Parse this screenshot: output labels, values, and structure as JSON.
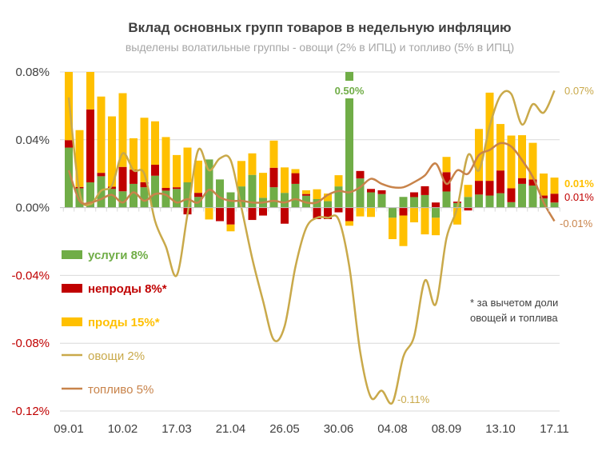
{
  "chart_data": {
    "type": "bar",
    "title": "Вклад основных групп товаров в недельную инфляцию",
    "subtitle": "выделены волатильные группы - овощи (2% в ИПЦ) и топливо (5% в ИПЦ)",
    "ylim": [
      -0.12,
      0.08
    ],
    "yticks": [
      "0.08%",
      "0.04%",
      "0.00%",
      "-0.04%",
      "-0.08%",
      "-0.12%"
    ],
    "ytick_values": [
      0.08,
      0.04,
      0,
      -0.04,
      -0.08,
      -0.12
    ],
    "xtick_labels": [
      "09.01",
      "10.02",
      "17.03",
      "21.04",
      "26.05",
      "30.06",
      "04.08",
      "08.09",
      "13.10",
      "17.11"
    ],
    "xtick_every": 5,
    "grid": true,
    "legend_placement": "left",
    "footnote": [
      "* за вычетом доли",
      "овощей и топлива"
    ],
    "annotations": {
      "spike": "0.50%",
      "veg_min": "-0.11%",
      "veg_last": "0.07%",
      "prody_last": "0.01%",
      "neprody_last": "0.01%",
      "fuel_last": "-0.01%"
    },
    "stacked_series": [
      {
        "name": "услуги 8%",
        "color": "#70AD47",
        "values": [
          0.0354,
          0.0114,
          0.0149,
          0.0185,
          0.011,
          0.0096,
          0.014,
          0.012,
          0.0188,
          0.01,
          0.011,
          0.0149,
          0.0063,
          0.0284,
          0.0166,
          0.009,
          0.0125,
          0.0193,
          0.0058,
          0.012,
          0.0087,
          0.014,
          0.007,
          0.005,
          0.0038,
          0.0125,
          0.5,
          0.0172,
          0.009,
          0.008,
          -0.006,
          0.0063,
          0.0062,
          0.0074,
          -0.006,
          0.0095,
          0.0027,
          0.0063,
          0.0077,
          0.0071,
          0.0085,
          0.0032,
          0.014,
          0.013,
          0.0054,
          0.003
        ]
      },
      {
        "name": "непроды 8%*",
        "color": "#C00000",
        "values": [
          0.0044,
          0.0008,
          0.043,
          0.002,
          0.0013,
          0.0144,
          0.0084,
          0.003,
          0.0065,
          0.0016,
          0.001,
          -0.004,
          0.0024,
          0,
          -0.008,
          -0.01,
          0,
          -0.0073,
          -0.0047,
          0.0115,
          -0.0095,
          0.0063,
          0.001,
          -0.0068,
          -0.0068,
          -0.0028,
          -0.008,
          0.0044,
          0.002,
          0.0022,
          0,
          -0.0047,
          0.0028,
          0.0052,
          0.003,
          0.0114,
          0.0008,
          -0.0017,
          0.0081,
          0.0087,
          0.0134,
          0.0082,
          0.0034,
          0.0036,
          0.0017,
          0.0052
        ]
      },
      {
        "name": "проды 15%*",
        "color": "#FFC000",
        "values": [
          0.045,
          0.0335,
          0.03,
          0.045,
          0.0415,
          0.0435,
          0.0185,
          0.038,
          0.0256,
          0.03,
          0.019,
          0.0205,
          0.019,
          -0.007,
          0,
          -0.004,
          0.015,
          0.0127,
          0.0147,
          0.016,
          0.015,
          0.0024,
          0.0022,
          0.0058,
          0.0045,
          0.0066,
          -0.0027,
          -0.0052,
          -0.0055,
          0,
          -0.0126,
          -0.018,
          -0.0087,
          -0.0158,
          -0.0103,
          0.009,
          -0.01,
          0.0071,
          0.0306,
          0.052,
          0.0274,
          0.0311,
          0.0253,
          0.0216,
          0.013,
          0.0095
        ]
      }
    ],
    "line_series": [
      {
        "name": "овощи 2%",
        "color": "#C9A94A",
        "values": [
          0.065,
          0.009,
          0.002,
          0.01,
          0.013,
          0.032,
          0.022,
          0.02,
          -0.008,
          -0.023,
          -0.04,
          -0.004,
          0.034,
          0.022,
          0.029,
          0.028,
          0,
          -0.03,
          -0.055,
          -0.078,
          -0.07,
          -0.035,
          -0.012,
          -0.006,
          -0.006,
          -0.007,
          -0.035,
          -0.085,
          -0.112,
          -0.108,
          -0.115,
          -0.088,
          -0.076,
          -0.043,
          -0.057,
          -0.018,
          0,
          0.031,
          0.022,
          0.048,
          0.066,
          0.067,
          0.049,
          0.061,
          0.056,
          0.069
        ]
      },
      {
        "name": "топливо 5%",
        "color": "#C8834A",
        "values": [
          0.022,
          0.004,
          0.003,
          0.005,
          0.0075,
          0.003,
          0.009,
          0.004,
          0.008,
          0.0075,
          0.003,
          0.005,
          0.003,
          0.0105,
          0.006,
          0.004,
          0.004,
          0.003,
          0.003,
          0.004,
          0.003,
          0.005,
          0.003,
          0.003,
          0.0075,
          0.0098,
          0.009,
          0.012,
          0.017,
          0.014,
          0.012,
          0.012,
          0.015,
          0.019,
          0.026,
          0.014,
          0.022,
          0.02,
          0.031,
          0.034,
          0.038,
          0.036,
          0.028,
          0.018,
          0.003,
          -0.008
        ]
      }
    ],
    "colors": {
      "text": "#404040",
      "subtitle": "#A6A6A6",
      "negative_tick": "#C00000",
      "grid": "#D9D9D9",
      "footnote": "#404040"
    }
  }
}
